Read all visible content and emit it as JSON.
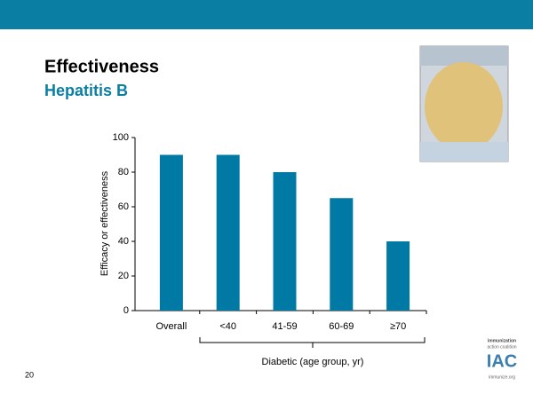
{
  "slide": {
    "page_number": "20",
    "logo": {
      "line1": "immunization",
      "line2": "action coalition",
      "mark": "IAC",
      "url": "immunize.org"
    }
  },
  "chart_data": {
    "type": "bar",
    "title": "Effectiveness",
    "subtitle": "Hepatitis B",
    "y_label": "Efficacy or effectiveness",
    "group_label": "Diabetic (age group, yr)",
    "categories": [
      "Overall",
      "<40",
      "41-59",
      "60-69",
      "≥70"
    ],
    "values": [
      90,
      90,
      80,
      65,
      40
    ],
    "color": "#0079a5",
    "ylim": [
      0,
      100
    ],
    "yticks": [
      0,
      20,
      40,
      60,
      80,
      100
    ],
    "grid": false
  }
}
